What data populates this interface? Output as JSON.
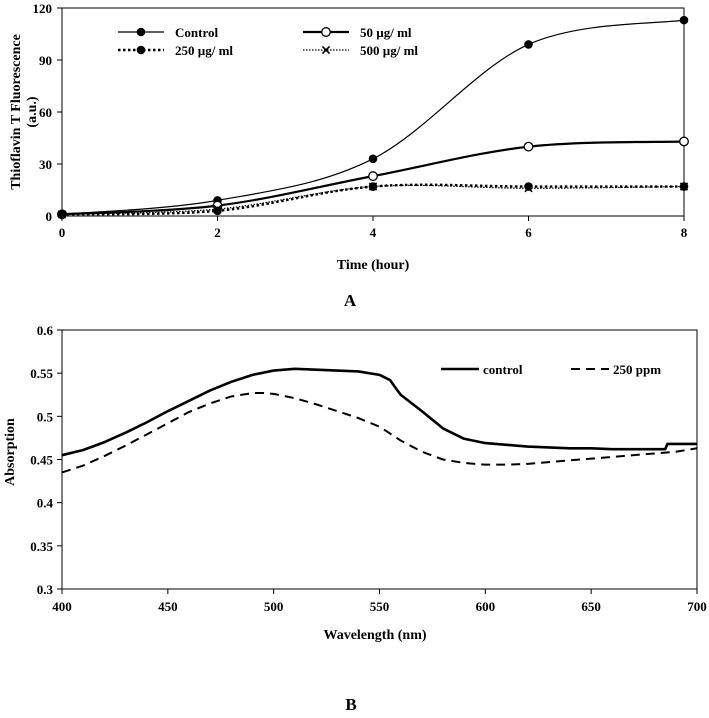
{
  "chart_data": [
    {
      "type": "line",
      "panel_label": "A",
      "xlabel": "Time (hour)",
      "ylabel": "Thioflavin T Fluorescence",
      "ylabel_unit": "(a.u.)",
      "xlim": [
        0,
        8
      ],
      "ylim": [
        0,
        120
      ],
      "x_ticks": [
        "0",
        "2",
        "4",
        "6",
        "8"
      ],
      "y_ticks": [
        "0",
        "30",
        "60",
        "90",
        "120"
      ],
      "grid": false,
      "x": [
        0,
        2,
        4,
        6,
        8
      ],
      "series": [
        {
          "name": "Control",
          "values": [
            1,
            9,
            33,
            99,
            113
          ],
          "line": "solid-thin",
          "marker": "filled-circle"
        },
        {
          "name": "50 µg/ ml",
          "values": [
            1,
            6,
            23,
            40,
            43
          ],
          "line": "solid-thick",
          "marker": "open-circle"
        },
        {
          "name": "250 µg/ ml",
          "values": [
            1,
            3,
            17,
            17,
            17
          ],
          "line": "dotted",
          "marker": "filled-circle"
        },
        {
          "name": "500 µg/ ml",
          "values": [
            1,
            4,
            17,
            16,
            17
          ],
          "line": "fine-dotted",
          "marker": "x"
        }
      ]
    },
    {
      "type": "line",
      "panel_label": "B",
      "xlabel": "Wavelength (nm)",
      "ylabel": "Absorption",
      "xlim": [
        400,
        700
      ],
      "ylim": [
        0.3,
        0.6
      ],
      "x_ticks": [
        "400",
        "450",
        "500",
        "550",
        "600",
        "650",
        "700"
      ],
      "y_ticks": [
        "0.3",
        "0.35",
        "0.4",
        "0.45",
        "0.5",
        "0.55",
        "0.6"
      ],
      "grid": false,
      "series": [
        {
          "name": "control",
          "line": "solid",
          "x": [
            400,
            410,
            420,
            430,
            440,
            450,
            460,
            470,
            480,
            490,
            500,
            510,
            520,
            530,
            540,
            550,
            555,
            557,
            560,
            570,
            580,
            590,
            600,
            610,
            620,
            630,
            640,
            650,
            660,
            670,
            680,
            685,
            686,
            690,
            700
          ],
          "values": [
            0.455,
            0.461,
            0.47,
            0.481,
            0.493,
            0.506,
            0.518,
            0.53,
            0.54,
            0.548,
            0.553,
            0.555,
            0.554,
            0.553,
            0.552,
            0.548,
            0.542,
            0.535,
            0.525,
            0.506,
            0.486,
            0.474,
            0.469,
            0.467,
            0.465,
            0.464,
            0.463,
            0.463,
            0.462,
            0.462,
            0.462,
            0.462,
            0.468,
            0.468,
            0.468
          ]
        },
        {
          "name": "250 ppm",
          "line": "dashed",
          "x": [
            400,
            410,
            420,
            430,
            440,
            450,
            460,
            470,
            480,
            490,
            495,
            500,
            510,
            520,
            530,
            540,
            550,
            555,
            560,
            570,
            580,
            590,
            600,
            610,
            620,
            630,
            640,
            650,
            660,
            670,
            680,
            690,
            700
          ],
          "values": [
            0.435,
            0.443,
            0.454,
            0.466,
            0.479,
            0.492,
            0.505,
            0.515,
            0.523,
            0.527,
            0.527,
            0.526,
            0.521,
            0.514,
            0.506,
            0.498,
            0.488,
            0.48,
            0.472,
            0.459,
            0.45,
            0.446,
            0.444,
            0.444,
            0.445,
            0.447,
            0.449,
            0.451,
            0.453,
            0.455,
            0.457,
            0.459,
            0.463
          ]
        }
      ]
    }
  ]
}
